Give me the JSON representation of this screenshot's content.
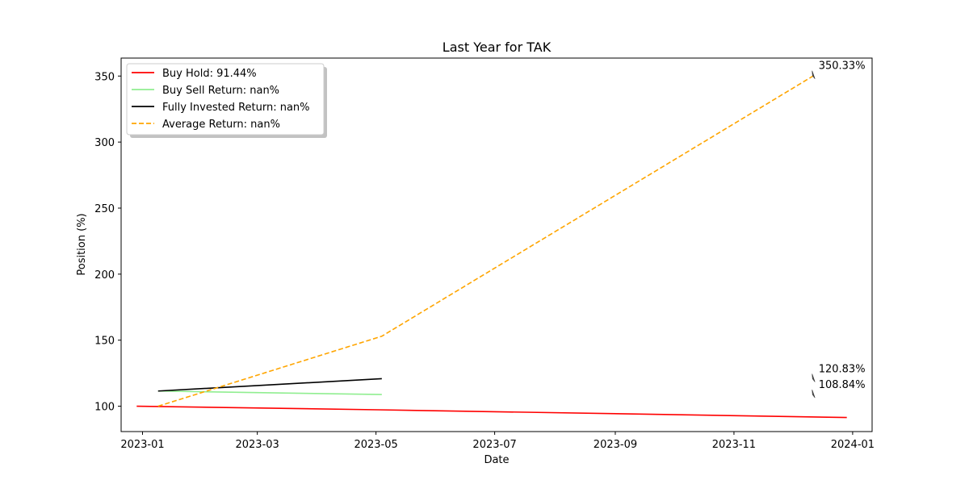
{
  "chart_data": {
    "type": "line",
    "title": "Last Year for TAK",
    "xlabel": "Date",
    "ylabel": "Position (%)",
    "x_range": [
      "2022-12-21",
      "2024-01-11"
    ],
    "ylim": [
      80.8,
      363.6
    ],
    "x_ticks": [
      {
        "date": "2023-01-01",
        "label": "2023-01"
      },
      {
        "date": "2023-03-01",
        "label": "2023-03"
      },
      {
        "date": "2023-05-01",
        "label": "2023-05"
      },
      {
        "date": "2023-07-01",
        "label": "2023-07"
      },
      {
        "date": "2023-09-01",
        "label": "2023-09"
      },
      {
        "date": "2023-11-01",
        "label": "2023-11"
      },
      {
        "date": "2024-01-01",
        "label": "2024-01"
      }
    ],
    "y_ticks": [
      100,
      150,
      200,
      250,
      300,
      350
    ],
    "series": [
      {
        "name": "Buy Hold",
        "legend_label": "Buy Hold: 91.44%",
        "color": "#ff0000",
        "style": "solid",
        "points": [
          {
            "x": "2022-12-29",
            "y": 100
          },
          {
            "x": "2023-05-02",
            "y": 97.3
          },
          {
            "x": "2023-12-29",
            "y": 91.44
          }
        ]
      },
      {
        "name": "Buy Sell Return",
        "legend_label": "Buy Sell Return: nan%",
        "color": "#90ee90",
        "style": "solid",
        "points": [
          {
            "x": "2023-01-09",
            "y": 111.5
          },
          {
            "x": "2023-05-04",
            "y": 108.84
          }
        ]
      },
      {
        "name": "Fully Invested Return",
        "legend_label": "Fully Invested Return: nan%",
        "color": "#000000",
        "style": "solid",
        "points": [
          {
            "x": "2023-01-09",
            "y": 111.5
          },
          {
            "x": "2023-05-04",
            "y": 120.83
          }
        ]
      },
      {
        "name": "Average Return",
        "legend_label": "Average Return: nan%",
        "color": "#ffa500",
        "style": "dashed",
        "points": [
          {
            "x": "2023-01-09",
            "y": 100
          },
          {
            "x": "2023-05-04",
            "y": 153
          },
          {
            "x": "2023-12-12",
            "y": 350.33
          }
        ]
      }
    ],
    "annotations": [
      {
        "label": "350.33%",
        "x": "2023-12-12",
        "y": 350.33
      },
      {
        "label": "120.83%",
        "x": "2023-12-12",
        "y": 120.83
      },
      {
        "label": "108.84%",
        "x": "2023-12-12",
        "y": 108.84
      }
    ],
    "legend_position": "top-left"
  }
}
